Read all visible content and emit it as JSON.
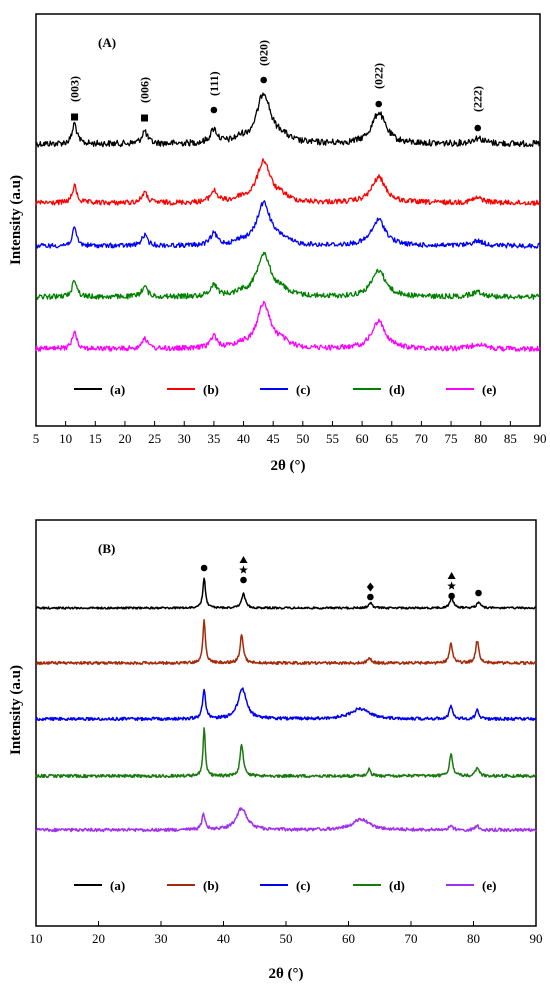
{
  "chart_data": [
    {
      "panel_label": "(A)",
      "type": "line",
      "xlabel": "2θ (°)",
      "ylabel": "Intensity (a.u)",
      "xlim": [
        5,
        90
      ],
      "xticks": [
        5,
        10,
        15,
        20,
        25,
        30,
        35,
        40,
        45,
        50,
        55,
        60,
        65,
        70,
        75,
        80,
        85,
        90
      ],
      "legend_position": "bottom-inside",
      "series": [
        {
          "name": "(a)",
          "color": "#000000"
        },
        {
          "name": "(b)",
          "color": "#ff0000"
        },
        {
          "name": "(c)",
          "color": "#0000ff"
        },
        {
          "name": "(d)",
          "color": "#008000"
        },
        {
          "name": "(e)",
          "color": "#ff00ff"
        }
      ],
      "peaks": [
        {
          "x": 11.5,
          "height": 0.9,
          "width": 0.45
        },
        {
          "x": 23.3,
          "height": 0.55,
          "width": 0.55
        },
        {
          "x": 35.0,
          "height": 0.6,
          "width": 0.7
        },
        {
          "x": 39.5,
          "height": 0.18,
          "width": 1.0
        },
        {
          "x": 43.4,
          "height": 2.2,
          "width": 1.4
        },
        {
          "x": 46.5,
          "height": 0.25,
          "width": 1.2
        },
        {
          "x": 62.8,
          "height": 1.35,
          "width": 1.4
        },
        {
          "x": 79.5,
          "height": 0.25,
          "width": 1.2
        }
      ],
      "annotations": [
        {
          "x": 11.5,
          "label": "(003)",
          "marker": "square"
        },
        {
          "x": 23.3,
          "label": "(006)",
          "marker": "square"
        },
        {
          "x": 35.0,
          "label": "(111)",
          "marker": "circle"
        },
        {
          "x": 43.4,
          "label": "(020)",
          "marker": "circle"
        },
        {
          "x": 62.8,
          "label": "(022)",
          "marker": "circle"
        },
        {
          "x": 79.5,
          "label": "(222)",
          "marker": "circle"
        }
      ]
    },
    {
      "panel_label": "(B)",
      "type": "line",
      "xlabel": "2θ (°)",
      "ylabel": "Intensity (a.u)",
      "xlim": [
        10,
        90
      ],
      "xticks": [
        10,
        20,
        30,
        40,
        50,
        60,
        70,
        80,
        90
      ],
      "legend_position": "bottom-inside",
      "series": [
        {
          "name": "(a)",
          "color": "#000000"
        },
        {
          "name": "(b)",
          "color": "#a52a0a"
        },
        {
          "name": "(c)",
          "color": "#0000ee"
        },
        {
          "name": "(d)",
          "color": "#1a7a10"
        },
        {
          "name": "(e)",
          "color": "#a030f0"
        }
      ],
      "annotations": [
        {
          "x": 36.9,
          "markers": [
            "circle"
          ]
        },
        {
          "x": 43.2,
          "markers": [
            "circle",
            "star",
            "triangle"
          ]
        },
        {
          "x": 63.5,
          "markers": [
            "circle",
            "diamond"
          ]
        },
        {
          "x": 76.5,
          "markers": [
            "circle",
            "star",
            "triangle"
          ]
        },
        {
          "x": 80.8,
          "markers": [
            "circle"
          ]
        }
      ]
    }
  ]
}
